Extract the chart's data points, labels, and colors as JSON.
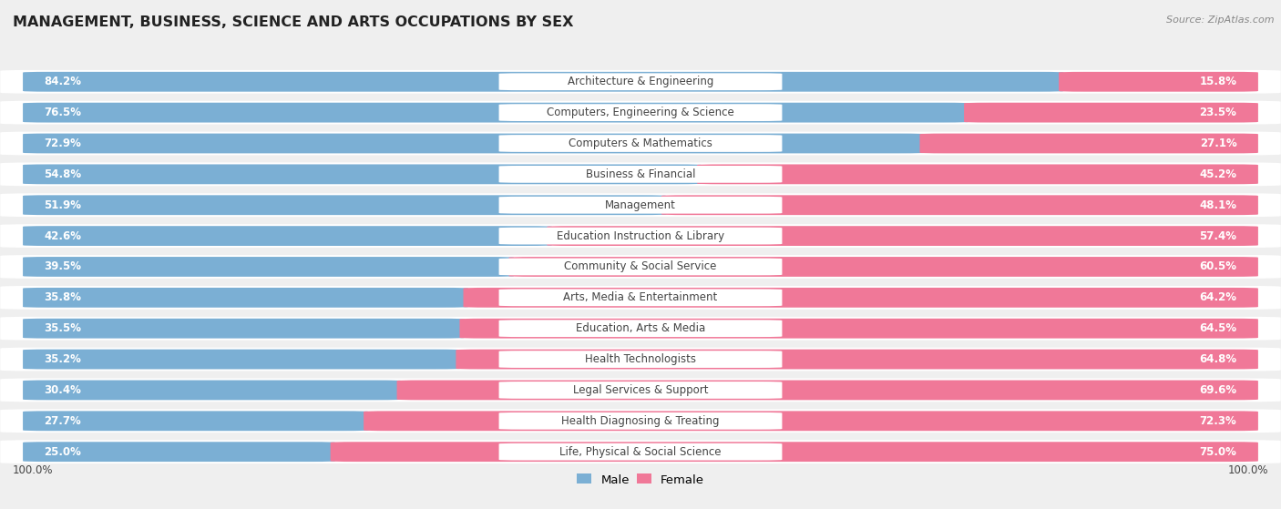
{
  "title": "MANAGEMENT, BUSINESS, SCIENCE AND ARTS OCCUPATIONS BY SEX",
  "source": "Source: ZipAtlas.com",
  "categories": [
    "Architecture & Engineering",
    "Computers, Engineering & Science",
    "Computers & Mathematics",
    "Business & Financial",
    "Management",
    "Education Instruction & Library",
    "Community & Social Service",
    "Arts, Media & Entertainment",
    "Education, Arts & Media",
    "Health Technologists",
    "Legal Services & Support",
    "Health Diagnosing & Treating",
    "Life, Physical & Social Science"
  ],
  "male_pct": [
    84.2,
    76.5,
    72.9,
    54.8,
    51.9,
    42.6,
    39.5,
    35.8,
    35.5,
    35.2,
    30.4,
    27.7,
    25.0
  ],
  "female_pct": [
    15.8,
    23.5,
    27.1,
    45.2,
    48.1,
    57.4,
    60.5,
    64.2,
    64.5,
    64.8,
    69.6,
    72.3,
    75.0
  ],
  "male_color": "#7bafd4",
  "female_color": "#f07898",
  "background_color": "#efefef",
  "row_bg_color": "#ffffff",
  "title_fontsize": 11.5,
  "bar_label_fontsize": 8.5,
  "cat_label_fontsize": 8.5,
  "legend_fontsize": 9.5,
  "axis_label_fontsize": 8.5
}
